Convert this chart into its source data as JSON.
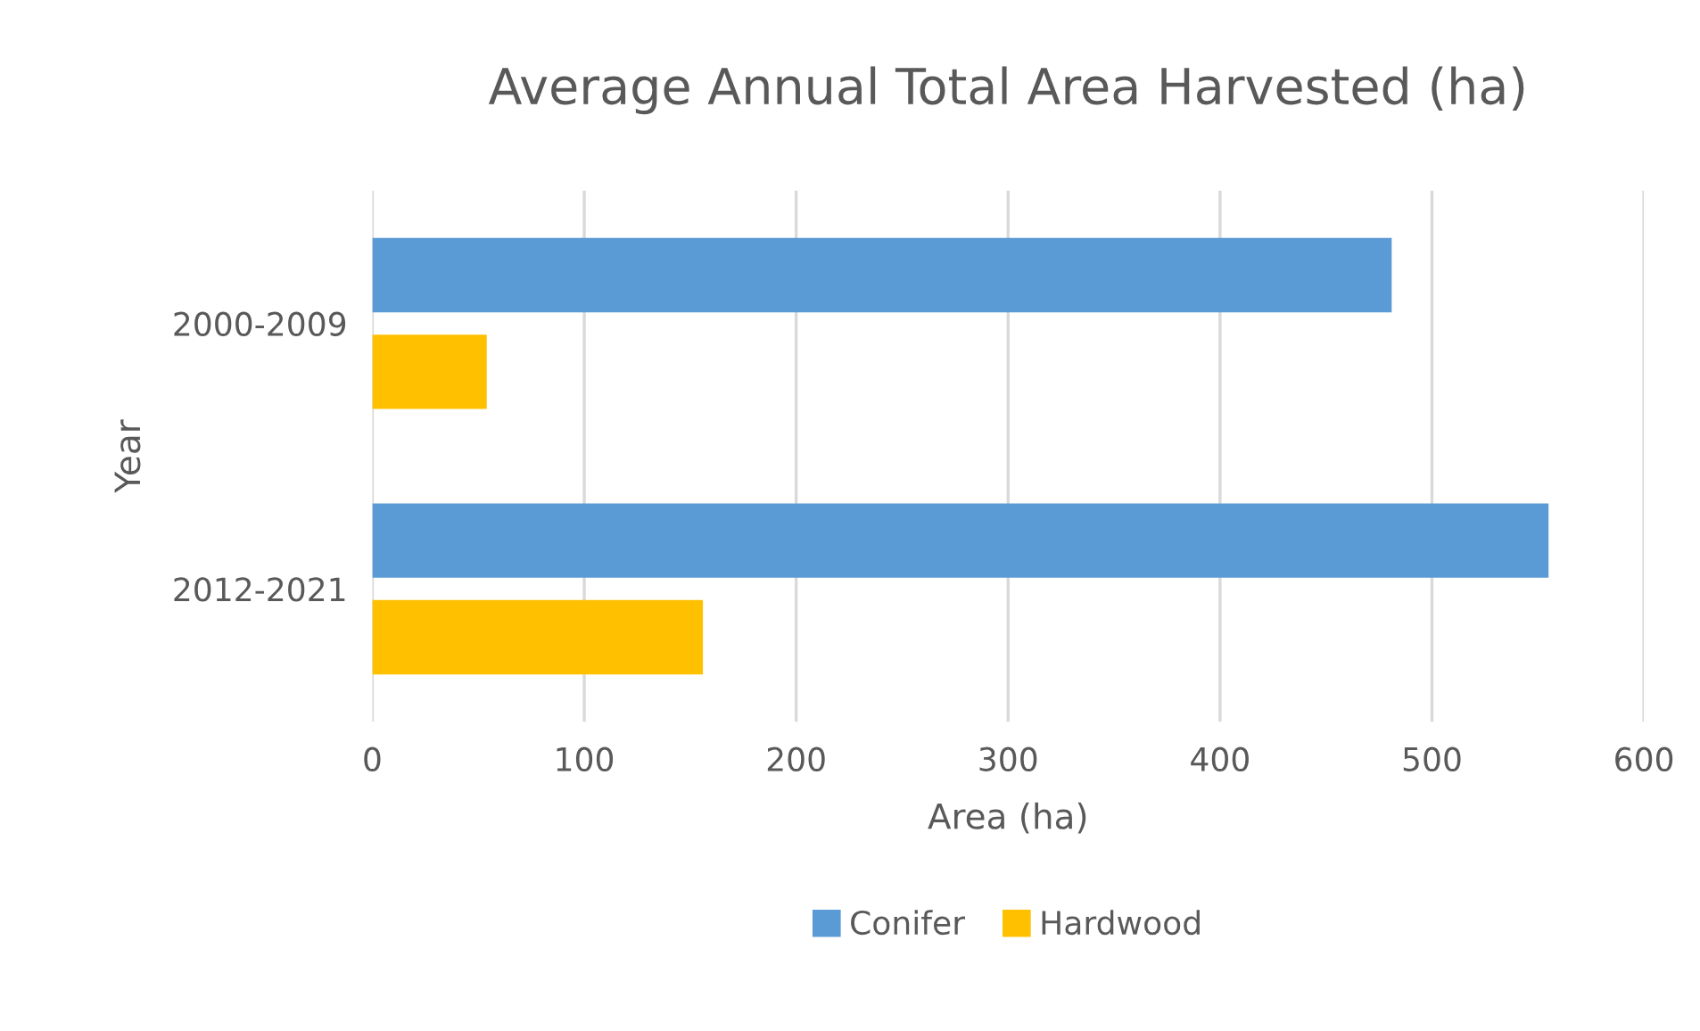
{
  "chart_data": {
    "type": "bar",
    "orientation": "horizontal",
    "title": "Average Annual Total Area Harvested (ha)",
    "xlabel": "Area (ha)",
    "ylabel": "Year",
    "categories": [
      "2000-2009",
      "2012-2021"
    ],
    "series": [
      {
        "name": "Conifer",
        "color": "#5b9bd5",
        "values": [
          481,
          555
        ]
      },
      {
        "name": "Hardwood",
        "color": "#ffc000",
        "values": [
          54,
          156
        ]
      }
    ],
    "xlim": [
      0,
      600
    ],
    "xticks": [
      0,
      100,
      200,
      300,
      400,
      500,
      600
    ],
    "grid": "x",
    "legend": "bottom"
  }
}
